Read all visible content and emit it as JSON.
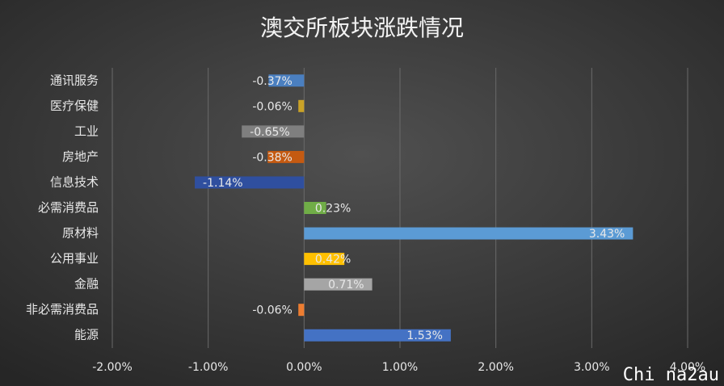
{
  "chart_data": {
    "type": "hbar",
    "title": "澳交所板块涨跌情况",
    "categories": [
      "通讯服务",
      "医疗保健",
      "工业",
      "房地产",
      "信息技术",
      "必需消费品",
      "原材料",
      "公用事业",
      "金融",
      "非必需消费品",
      "能源"
    ],
    "values": [
      -0.37,
      -0.06,
      -0.65,
      -0.38,
      -1.14,
      0.23,
      3.43,
      0.42,
      0.71,
      -0.06,
      1.53
    ],
    "value_labels": [
      "-0.37%",
      "-0.06%",
      "-0.65%",
      "-0.38%",
      "-1.14%",
      "0.23%",
      "3.43%",
      "0.42%",
      "0.71%",
      "-0.06%",
      "1.53%"
    ],
    "colors": [
      "#4a7fc0",
      "#c9a227",
      "#7f7f7f",
      "#c55a11",
      "#2f4f9f",
      "#70ad47",
      "#5b9bd5",
      "#ffc000",
      "#a5a5a5",
      "#ed7d31",
      "#4472c4"
    ],
    "xlim": [
      -2,
      4
    ],
    "xticks": [
      {
        "value": -2,
        "label": "-2.00%"
      },
      {
        "value": -1,
        "label": "-1.00%"
      },
      {
        "value": 0,
        "label": "0.00%"
      },
      {
        "value": 1,
        "label": "1.00%"
      },
      {
        "value": 2,
        "label": "2.00%"
      },
      {
        "value": 3,
        "label": "3.00%"
      },
      {
        "value": 4,
        "label": "4.00%"
      }
    ],
    "grid": true,
    "watermark": "Chi na2au"
  }
}
